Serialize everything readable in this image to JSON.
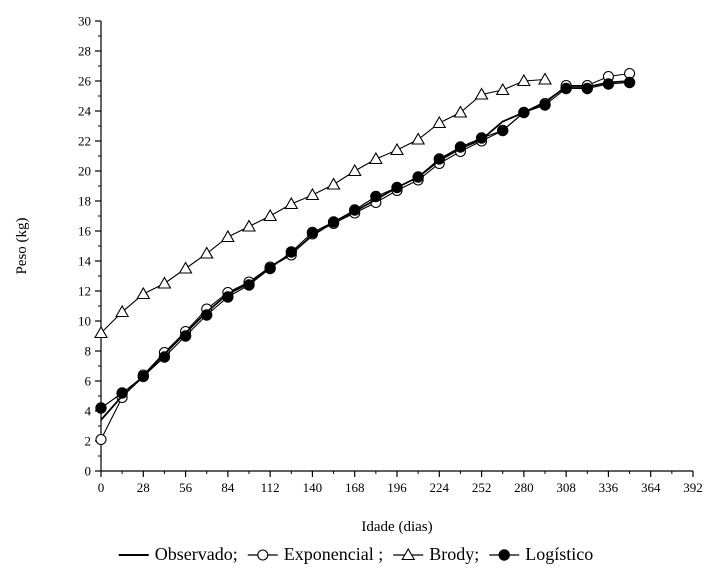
{
  "chart_data": {
    "type": "line",
    "title": "",
    "xlabel": "Idade (dias)",
    "ylabel": "Peso (kg)",
    "xlim": [
      0,
      392
    ],
    "ylim": [
      0,
      30
    ],
    "xticks": [
      0,
      28,
      56,
      84,
      112,
      140,
      168,
      196,
      224,
      252,
      280,
      308,
      336,
      364,
      392
    ],
    "yticks": [
      0,
      2,
      4,
      6,
      8,
      10,
      12,
      14,
      16,
      18,
      20,
      22,
      24,
      26,
      28,
      30
    ],
    "grid": false,
    "legend_position": "bottom",
    "series": [
      {
        "name": "Observado;",
        "marker": "none",
        "x": [
          0,
          14,
          28,
          42,
          56,
          70,
          84,
          98,
          112,
          126,
          140,
          154,
          168,
          182,
          196,
          210,
          224,
          238,
          252,
          266,
          280,
          294,
          308,
          322,
          336,
          350
        ],
        "y": [
          3.4,
          5.0,
          6.3,
          7.8,
          9.2,
          10.6,
          11.8,
          12.5,
          13.6,
          14.5,
          15.7,
          16.6,
          17.3,
          18.1,
          18.9,
          19.6,
          20.7,
          21.5,
          22.1,
          23.3,
          23.9,
          24.6,
          25.6,
          25.6,
          25.9,
          26.0
        ]
      },
      {
        "name": "Exponencial ;",
        "marker": "open-circle",
        "x": [
          0,
          14,
          28,
          42,
          56,
          70,
          84,
          98,
          112,
          126,
          140,
          154,
          168,
          182,
          196,
          210,
          224,
          238,
          252,
          266,
          280,
          294,
          308,
          322,
          336,
          350
        ],
        "y": [
          2.1,
          4.9,
          6.4,
          7.9,
          9.3,
          10.8,
          11.9,
          12.6,
          13.6,
          14.4,
          15.8,
          16.5,
          17.2,
          17.9,
          18.7,
          19.4,
          20.5,
          21.3,
          22.0,
          22.7,
          23.9,
          24.5,
          25.7,
          25.7,
          26.3,
          26.5
        ]
      },
      {
        "name": "Brody;",
        "marker": "open-triangle",
        "x": [
          0,
          14,
          28,
          42,
          56,
          70,
          84,
          98,
          112,
          126,
          140,
          154,
          168,
          182,
          196,
          210,
          224,
          238,
          252,
          266,
          280,
          294
        ],
        "y": [
          9.2,
          10.6,
          11.8,
          12.5,
          13.5,
          14.5,
          15.6,
          16.3,
          17.0,
          17.8,
          18.4,
          19.1,
          20.0,
          20.8,
          21.4,
          22.1,
          23.2,
          23.9,
          25.1,
          25.4,
          26.0,
          26.1
        ]
      },
      {
        "name": "Logístico",
        "marker": "filled-circle",
        "x": [
          0,
          14,
          28,
          42,
          56,
          70,
          84,
          98,
          112,
          126,
          140,
          154,
          168,
          182,
          196,
          210,
          224,
          238,
          252,
          266,
          280,
          294,
          308,
          322,
          336,
          350
        ],
        "y": [
          4.2,
          5.2,
          6.3,
          7.6,
          9.0,
          10.4,
          11.6,
          12.4,
          13.5,
          14.6,
          15.9,
          16.6,
          17.4,
          18.3,
          18.9,
          19.6,
          20.8,
          21.6,
          22.2,
          22.7,
          23.9,
          24.4,
          25.5,
          25.5,
          25.8,
          25.9
        ]
      }
    ]
  }
}
